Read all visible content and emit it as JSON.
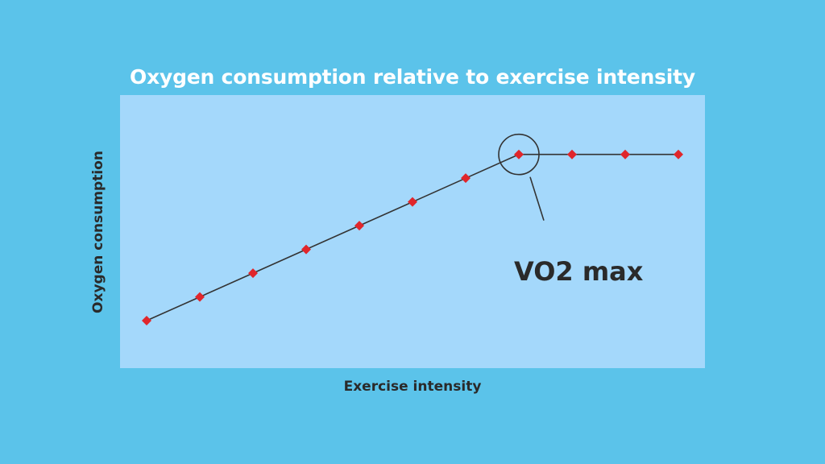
{
  "chart_data": {
    "type": "line",
    "title": "Oxygen consumption relative to exercise intensity",
    "xlabel": "Exercise intensity",
    "ylabel": "Oxygen consumption",
    "grid": false,
    "x": [
      1,
      2,
      3,
      4,
      5,
      6,
      7,
      8,
      9,
      10,
      11
    ],
    "series": [
      {
        "values": [
          1,
          2,
          3,
          4,
          5,
          6,
          7,
          8,
          8,
          8,
          8
        ]
      }
    ],
    "xlim": [
      0.5,
      11.5
    ],
    "ylim": [
      -1,
      10.5
    ],
    "annotations": [
      {
        "text": "VO2 max",
        "x": 8,
        "y": 8
      }
    ],
    "colors": {
      "background": "#5bc3ea",
      "plot_area": "#a4d8fb",
      "line": "#333333",
      "marker": "#e0262b",
      "text": "#2a2a2a",
      "title": "#ffffff"
    }
  }
}
